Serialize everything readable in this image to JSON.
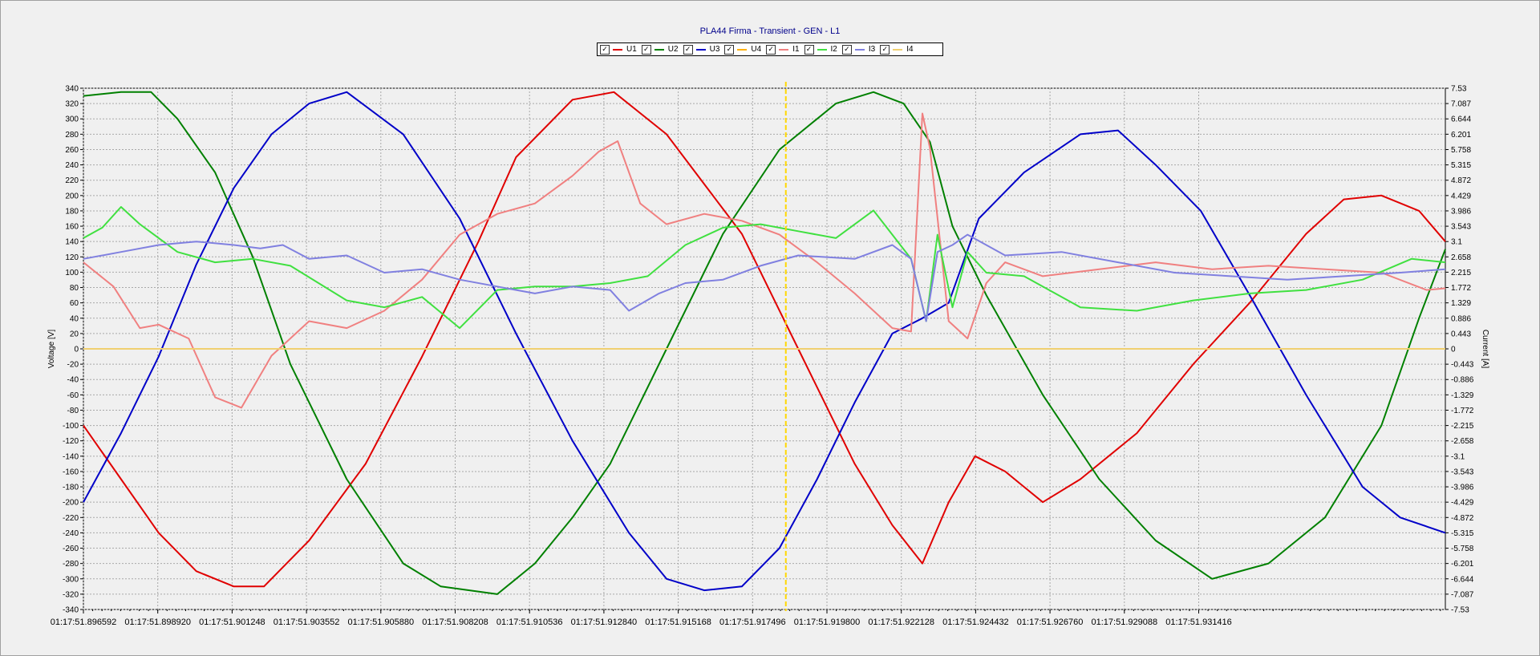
{
  "chart_data": {
    "type": "line",
    "title": "PLA44 Firma - Transient - GEN - L1",
    "ylabel_left": "Voltage [V]",
    "ylabel_right": "Current [A]",
    "y_left_ticks": [
      340,
      320,
      300,
      280,
      260,
      240,
      220,
      200,
      180,
      160,
      140,
      120,
      100,
      80,
      60,
      40,
      20,
      0,
      -20,
      -40,
      -60,
      -80,
      -100,
      -120,
      -140,
      -160,
      -180,
      -200,
      -220,
      -240,
      -260,
      -280,
      -300,
      -320,
      -340
    ],
    "y_right_ticks": [
      "7.53",
      "7.087",
      "6.644",
      "6.201",
      "5.758",
      "5.315",
      "4.872",
      "4.429",
      "3.986",
      "3.543",
      "3.1",
      "2.658",
      "2.215",
      "1.772",
      "1.329",
      "0.886",
      "0.443",
      "0",
      "-0.443",
      "-0.886",
      "-1.329",
      "-1.772",
      "-2.215",
      "-2.658",
      "-3.1",
      "-3.543",
      "-3.986",
      "-4.429",
      "-4.872",
      "-5.315",
      "-5.758",
      "-6.201",
      "-6.644",
      "-7.087",
      "-7.53"
    ],
    "ylim_left": [
      -340,
      340
    ],
    "ylim_right": [
      -7.53,
      7.53
    ],
    "x_ticks": [
      "01:17:51.896592",
      "01:17:51.898920",
      "01:17:51.901248",
      "01:17:51.903552",
      "01:17:51.905880",
      "01:17:51.908208",
      "01:17:51.910536",
      "01:17:51.912840",
      "01:17:51.915168",
      "01:17:51.917496",
      "01:17:51.919800",
      "01:17:51.922128",
      "01:17:51.924432",
      "01:17:51.926760",
      "01:17:51.929088",
      "01:17:51.931416"
    ],
    "x_range_seconds": [
      51.8965,
      51.9327
    ],
    "cursor_x": 51.91517,
    "grid": true,
    "legend_position": "top-center",
    "legend": [
      {
        "name": "U1",
        "color": "#e00000",
        "checked": true
      },
      {
        "name": "U2",
        "color": "#008000",
        "checked": true
      },
      {
        "name": "U3",
        "color": "#0000c8",
        "checked": true
      },
      {
        "name": "U4",
        "color": "#ffb000",
        "checked": true
      },
      {
        "name": "I1",
        "color": "#f08080",
        "checked": true
      },
      {
        "name": "I2",
        "color": "#40e040",
        "checked": true
      },
      {
        "name": "I3",
        "color": "#8080e0",
        "checked": true
      },
      {
        "name": "I4",
        "color": "#f0d070",
        "checked": true
      }
    ],
    "series": [
      {
        "name": "U1",
        "axis": "left",
        "color": "#e00000",
        "x": [
          51.8965,
          51.8975,
          51.8985,
          51.8995,
          51.9005,
          51.9013,
          51.9025,
          51.904,
          51.9055,
          51.907,
          51.908,
          51.9095,
          51.9106,
          51.912,
          51.914,
          51.9155,
          51.917,
          51.918,
          51.9188,
          51.9195,
          51.9202,
          51.921,
          51.922,
          51.923,
          51.9245,
          51.926,
          51.9275,
          51.929,
          51.93,
          51.931,
          51.932,
          51.9327
        ],
        "y": [
          -100,
          -170,
          -240,
          -290,
          -310,
          -310,
          -250,
          -150,
          -10,
          140,
          250,
          325,
          335,
          280,
          150,
          0,
          -150,
          -230,
          -280,
          -200,
          -140,
          -160,
          -200,
          -170,
          -110,
          -20,
          60,
          150,
          195,
          200,
          180,
          140
        ]
      },
      {
        "name": "U2",
        "axis": "left",
        "color": "#008000",
        "x": [
          51.8965,
          51.8975,
          51.8983,
          51.899,
          51.9,
          51.901,
          51.902,
          51.9035,
          51.905,
          51.906,
          51.9075,
          51.9085,
          51.9095,
          51.9105,
          51.912,
          51.9135,
          51.915,
          51.9165,
          51.9175,
          51.9183,
          51.919,
          51.9196,
          51.9205,
          51.922,
          51.9235,
          51.925,
          51.9265,
          51.928,
          51.9295,
          51.931,
          51.932,
          51.9327
        ],
        "y": [
          330,
          335,
          335,
          300,
          230,
          120,
          -20,
          -170,
          -280,
          -310,
          -320,
          -280,
          -220,
          -150,
          0,
          150,
          260,
          320,
          335,
          320,
          270,
          160,
          70,
          -60,
          -170,
          -250,
          -300,
          -280,
          -220,
          -100,
          40,
          130
        ]
      },
      {
        "name": "U3",
        "axis": "left",
        "color": "#0000c8",
        "x": [
          51.8965,
          51.8975,
          51.8985,
          51.8995,
          51.9005,
          51.9015,
          51.9025,
          51.9035,
          51.905,
          51.9065,
          51.908,
          51.9095,
          51.911,
          51.912,
          51.913,
          51.914,
          51.915,
          51.916,
          51.917,
          51.918,
          51.9188,
          51.9195,
          51.9203,
          51.9215,
          51.923,
          51.924,
          51.925,
          51.9262,
          51.9275,
          51.929,
          51.9305,
          51.9315,
          51.9327
        ],
        "y": [
          -200,
          -110,
          -10,
          110,
          210,
          280,
          320,
          335,
          280,
          170,
          20,
          -120,
          -240,
          -300,
          -315,
          -310,
          -260,
          -170,
          -70,
          20,
          40,
          60,
          170,
          230,
          280,
          285,
          240,
          180,
          70,
          -60,
          -180,
          -220,
          -240
        ]
      },
      {
        "name": "U4",
        "axis": "left",
        "color": "#ffb000",
        "x": [
          51.8965,
          51.9327
        ],
        "y": [
          0,
          0
        ]
      },
      {
        "name": "I1",
        "axis": "right",
        "color": "#f08080",
        "x": [
          51.8965,
          51.8973,
          51.898,
          51.8985,
          51.8993,
          51.9,
          51.9007,
          51.9015,
          51.9025,
          51.9035,
          51.9045,
          51.9055,
          51.9065,
          51.9075,
          51.9085,
          51.9095,
          51.9102,
          51.9107,
          51.9113,
          51.912,
          51.913,
          51.914,
          51.915,
          51.916,
          51.917,
          51.918,
          51.9185,
          51.9188,
          51.919,
          51.9195,
          51.92,
          51.9205,
          51.921,
          51.922,
          51.9235,
          51.925,
          51.9265,
          51.928,
          51.9295,
          51.931,
          51.9322,
          51.9327
        ],
        "y": [
          2.5,
          1.8,
          0.6,
          0.7,
          0.3,
          -1.4,
          -1.7,
          -0.2,
          0.8,
          0.6,
          1.1,
          2.0,
          3.3,
          3.9,
          4.2,
          5.0,
          5.7,
          6.0,
          4.2,
          3.6,
          3.9,
          3.7,
          3.3,
          2.5,
          1.6,
          0.6,
          0.5,
          6.8,
          5.8,
          0.8,
          0.3,
          1.9,
          2.5,
          2.1,
          2.3,
          2.5,
          2.3,
          2.4,
          2.3,
          2.2,
          1.7,
          1.75
        ]
      },
      {
        "name": "I2",
        "axis": "right",
        "color": "#40e040",
        "x": [
          51.8965,
          51.897,
          51.8975,
          51.898,
          51.899,
          51.9,
          51.901,
          51.902,
          51.9035,
          51.9045,
          51.9055,
          51.9065,
          51.9075,
          51.9085,
          51.9095,
          51.9105,
          51.9115,
          51.9125,
          51.9135,
          51.9145,
          51.9155,
          51.9165,
          51.9175,
          51.9185,
          51.9189,
          51.9192,
          51.9196,
          51.92,
          51.9205,
          51.9215,
          51.923,
          51.9245,
          51.926,
          51.9275,
          51.929,
          51.9305,
          51.9318,
          51.9327
        ],
        "y": [
          3.2,
          3.5,
          4.1,
          3.6,
          2.8,
          2.5,
          2.6,
          2.4,
          1.4,
          1.2,
          1.5,
          0.6,
          1.7,
          1.8,
          1.8,
          1.9,
          2.1,
          3.0,
          3.5,
          3.6,
          3.4,
          3.2,
          4.0,
          2.6,
          0.8,
          3.3,
          1.2,
          2.8,
          2.2,
          2.1,
          1.2,
          1.1,
          1.4,
          1.6,
          1.7,
          2.0,
          2.6,
          2.5
        ]
      },
      {
        "name": "I3",
        "axis": "right",
        "color": "#8080e0",
        "x": [
          51.8965,
          51.8975,
          51.8985,
          51.8995,
          51.9005,
          51.9012,
          51.9018,
          51.9025,
          51.9035,
          51.9045,
          51.9055,
          51.9065,
          51.9075,
          51.9085,
          51.9095,
          51.9105,
          51.911,
          51.9118,
          51.9125,
          51.9135,
          51.9145,
          51.9155,
          51.917,
          51.918,
          51.9185,
          51.9189,
          51.9192,
          51.9196,
          51.92,
          51.921,
          51.9225,
          51.924,
          51.9255,
          51.927,
          51.9285,
          51.93,
          51.9315,
          51.9327
        ],
        "y": [
          2.6,
          2.8,
          3.0,
          3.1,
          3.0,
          2.9,
          3.0,
          2.6,
          2.7,
          2.2,
          2.3,
          2.0,
          1.8,
          1.6,
          1.8,
          1.7,
          1.1,
          1.6,
          1.9,
          2.0,
          2.4,
          2.7,
          2.6,
          3.0,
          2.6,
          0.8,
          2.8,
          3.0,
          3.3,
          2.7,
          2.8,
          2.5,
          2.2,
          2.1,
          2.0,
          2.1,
          2.2,
          2.3
        ]
      },
      {
        "name": "I4",
        "axis": "right",
        "color": "#f0d070",
        "x": [
          51.8965,
          51.9327
        ],
        "y": [
          0,
          0
        ]
      }
    ]
  }
}
